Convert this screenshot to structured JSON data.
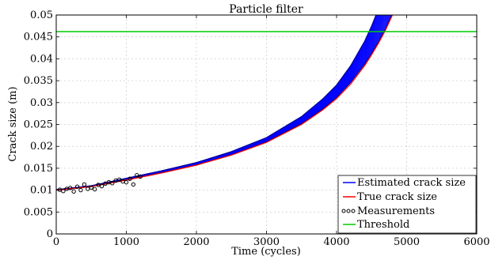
{
  "chart_data": {
    "type": "line",
    "title": "Particle filter",
    "xlabel": "Time (cycles)",
    "ylabel": "Crack size (m)",
    "xlim": [
      0,
      6000
    ],
    "ylim": [
      0,
      0.05
    ],
    "xticks": [
      "0",
      "1000",
      "2000",
      "3000",
      "4000",
      "5000",
      "6000"
    ],
    "yticks": [
      "0",
      "0.005",
      "0.01",
      "0.015",
      "0.02",
      "0.025",
      "0.03",
      "0.035",
      "0.04",
      "0.045",
      "0.05"
    ],
    "grid": true,
    "legend_position": "bottom-right",
    "series": [
      {
        "name": "Estimated crack size",
        "color": "#0000ff",
        "style": "band",
        "x": [
          0,
          500,
          1000,
          1500,
          2000,
          2500,
          3000,
          3500,
          3800,
          4000,
          4200,
          4400,
          4500,
          4600,
          4700,
          4800
        ],
        "y_low": [
          0.01,
          0.0108,
          0.0124,
          0.014,
          0.0158,
          0.0181,
          0.021,
          0.0252,
          0.0285,
          0.0312,
          0.0346,
          0.0388,
          0.0413,
          0.044,
          0.047,
          0.0505
        ],
        "y_high": [
          0.0101,
          0.011,
          0.0127,
          0.0144,
          0.0163,
          0.0188,
          0.022,
          0.0268,
          0.0308,
          0.034,
          0.0384,
          0.044,
          0.0475,
          0.0515,
          0.056,
          0.06
        ]
      },
      {
        "name": "True crack size",
        "color": "#ff0000",
        "style": "line",
        "x": [
          0,
          500,
          1000,
          1500,
          2000,
          2500,
          3000,
          3500,
          3800,
          4000,
          4200,
          4400,
          4500,
          4600,
          4700,
          4800
        ],
        "y": [
          0.01,
          0.0108,
          0.0123,
          0.0139,
          0.0157,
          0.018,
          0.0209,
          0.025,
          0.0283,
          0.0309,
          0.0342,
          0.0384,
          0.0409,
          0.0436,
          0.0466,
          0.0501
        ]
      },
      {
        "name": "Measurements",
        "color": "#000000",
        "style": "markers",
        "x": [
          50,
          100,
          150,
          200,
          250,
          300,
          350,
          400,
          450,
          500,
          550,
          600,
          650,
          700,
          750,
          800,
          850,
          900,
          950,
          1000,
          1050,
          1100,
          1150,
          1200
        ],
        "y": [
          0.0101,
          0.0098,
          0.0103,
          0.0105,
          0.0097,
          0.0108,
          0.01,
          0.0113,
          0.0103,
          0.0106,
          0.0102,
          0.0112,
          0.0109,
          0.0115,
          0.0118,
          0.0116,
          0.0122,
          0.0124,
          0.012,
          0.0118,
          0.0126,
          0.0113,
          0.0134,
          0.0131
        ]
      },
      {
        "name": "Threshold",
        "color": "#00cc00",
        "style": "hline",
        "y": 0.0462
      }
    ]
  }
}
